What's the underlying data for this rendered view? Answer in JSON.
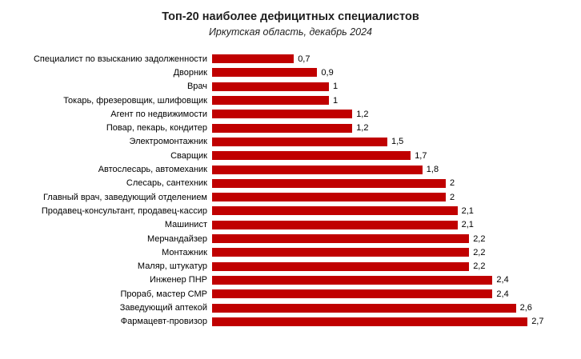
{
  "header": {
    "title": "Топ-20 наиболее дефицитных специалистов",
    "subtitle": "Иркутская область, декабрь 2024"
  },
  "chart_data": {
    "type": "bar",
    "orientation": "horizontal",
    "title": "Топ-20 наиболее дефицитных специалистов",
    "subtitle": "Иркутская область, декабрь 2024",
    "categories": [
      "Специалист по взысканию задолженности",
      "Дворник",
      "Врач",
      "Токарь, фрезеровщик, шлифовщик",
      "Агент по недвижимости",
      "Повар, пекарь, кондитер",
      "Электромонтажник",
      "Сварщик",
      "Автослесарь, автомеханик",
      "Слесарь, сантехник",
      "Главный врач, заведующий отделением",
      "Продавец-консультант, продавец-кассир",
      "Машинист",
      "Мерчандайзер",
      "Монтажник",
      "Маляр, штукатур",
      "Инженер ПНР",
      "Прораб, мастер СМР",
      "Заведующий аптекой",
      "Фармацевт-провизор"
    ],
    "values": [
      0.7,
      0.9,
      1,
      1,
      1.2,
      1.2,
      1.5,
      1.7,
      1.8,
      2,
      2,
      2.1,
      2.1,
      2.2,
      2.2,
      2.2,
      2.4,
      2.4,
      2.6,
      2.7
    ],
    "value_labels": [
      "0,7",
      "0,9",
      "1",
      "1",
      "1,2",
      "1,2",
      "1,5",
      "1,7",
      "1,8",
      "2",
      "2",
      "2,1",
      "2,1",
      "2,2",
      "2,2",
      "2,2",
      "2,4",
      "2,4",
      "2,6",
      "2,7"
    ],
    "xlabel": "",
    "ylabel": "",
    "xlim": [
      0,
      3
    ],
    "grid": false,
    "legend": false,
    "data_labels": true,
    "bar_color": "#c00000",
    "background_color": "#ffffff"
  }
}
